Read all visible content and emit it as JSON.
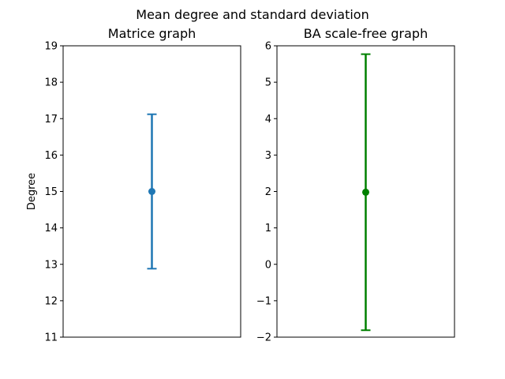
{
  "figure_title": "Mean degree and standard deviation",
  "chart_data": [
    {
      "type": "errorbar",
      "title": "Matrice graph",
      "xlabel": "",
      "ylabel": "Degree",
      "ylim": [
        11,
        19
      ],
      "yticks": [
        11,
        12,
        13,
        14,
        15,
        16,
        17,
        18,
        19
      ],
      "ytick_labels": [
        "11",
        "12",
        "13",
        "14",
        "15",
        "16",
        "17",
        "18",
        "19"
      ],
      "xticks_visible": false,
      "grid": false,
      "color": "#1f77b4",
      "points": [
        {
          "x": 0,
          "mean": 15.0,
          "std": 2.12
        }
      ]
    },
    {
      "type": "errorbar",
      "title": "BA scale-free graph",
      "xlabel": "",
      "ylabel": "",
      "ylim": [
        -2,
        6
      ],
      "yticks": [
        -2,
        -1,
        0,
        1,
        2,
        3,
        4,
        5,
        6
      ],
      "ytick_labels": [
        "−2",
        "−1",
        "0",
        "1",
        "2",
        "3",
        "4",
        "5",
        "6"
      ],
      "xticks_visible": false,
      "grid": false,
      "color": "#008000",
      "points": [
        {
          "x": 0,
          "mean": 1.98,
          "std": 3.79
        }
      ]
    }
  ]
}
